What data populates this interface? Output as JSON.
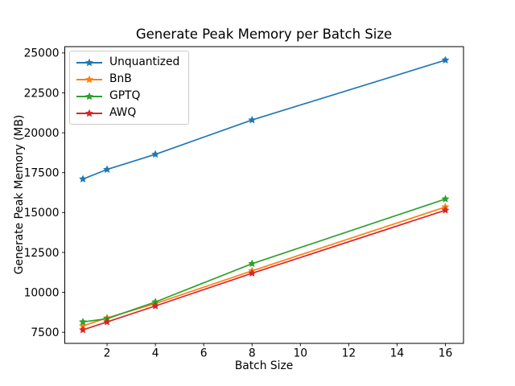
{
  "chart_data": {
    "type": "line",
    "title": "Generate Peak Memory per Batch Size",
    "xlabel": "Batch Size",
    "ylabel": "Generate Peak Memory (MB)",
    "x": [
      1,
      2,
      4,
      8,
      16
    ],
    "series": [
      {
        "name": "Unquantized",
        "color": "#1f77b4",
        "values": [
          17100,
          17700,
          18650,
          20800,
          24550
        ]
      },
      {
        "name": "BnB",
        "color": "#ff7f0e",
        "values": [
          7900,
          8400,
          9300,
          11350,
          15350
        ]
      },
      {
        "name": "GPTQ",
        "color": "#2ca02c",
        "values": [
          8150,
          8350,
          9400,
          11800,
          15850
        ]
      },
      {
        "name": "AWQ",
        "color": "#d62728",
        "values": [
          7650,
          8150,
          9150,
          11200,
          15150
        ]
      }
    ],
    "marker": "star",
    "xlim": [
      0.25,
      16.75
    ],
    "ylim": [
      6805,
      25395
    ],
    "x_ticks": [
      2,
      4,
      6,
      8,
      10,
      12,
      14,
      16
    ],
    "y_ticks": [
      7500,
      10000,
      12500,
      15000,
      17500,
      20000,
      22500,
      25000
    ],
    "legend_position": "upper left",
    "grid": false,
    "axis_color": "#000000",
    "background_color": "#ffffff"
  }
}
